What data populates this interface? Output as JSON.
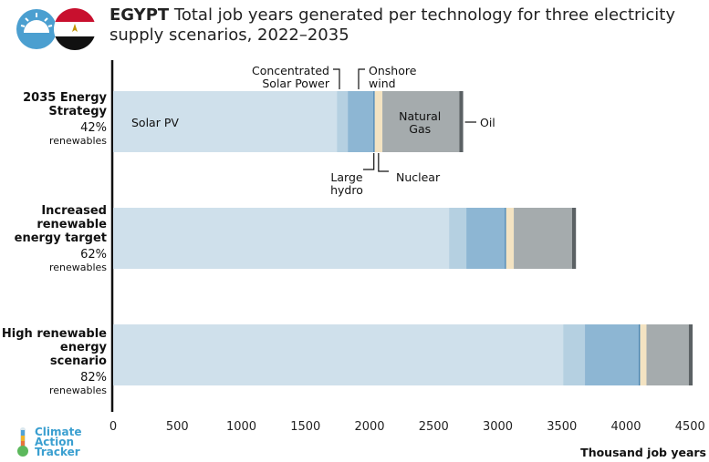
{
  "header": {
    "country": "EGYPT",
    "title_text": "Total job years generated per technology for three electricity supply scenarios, 2022–2035"
  },
  "branding": {
    "logo_lines": [
      "Climate",
      "Action",
      "Tracker"
    ]
  },
  "chart_data": {
    "type": "bar",
    "orientation": "horizontal",
    "stacked": true,
    "title": "Total job years generated per technology for three electricity supply scenarios, 2022–2035",
    "xlabel": "Thousand job years",
    "ylabel": "",
    "xlim": [
      0,
      4500
    ],
    "xticks": [
      0,
      500,
      1000,
      1500,
      2000,
      2500,
      3000,
      3500,
      4000,
      4500
    ],
    "grid": false,
    "categories": [
      {
        "name_lines": [
          "2035 Energy",
          "Strategy"
        ],
        "pct": "42%",
        "sub": "renewables"
      },
      {
        "name_lines": [
          "Increased",
          "renewable",
          "energy target"
        ],
        "pct": "62%",
        "sub": "renewables"
      },
      {
        "name_lines": [
          "High renewable",
          "energy scenario"
        ],
        "pct": "82%",
        "sub": "renewables"
      }
    ],
    "series": [
      {
        "name": "Solar PV",
        "color": "#cfe0eb",
        "values": [
          1745,
          2620,
          3510
        ]
      },
      {
        "name": "Concentrated Solar Power",
        "color": "#b5d0e1",
        "values": [
          85,
          135,
          170
        ]
      },
      {
        "name": "Onshore wind",
        "color": "#8db6d3",
        "values": [
          200,
          300,
          420
        ]
      },
      {
        "name": "Large hydro",
        "color": "#3f7fb0",
        "values": [
          10,
          10,
          10
        ]
      },
      {
        "name": "Nuclear",
        "color": "#f3e3c2",
        "values": [
          60,
          60,
          50
        ]
      },
      {
        "name": "Natural Gas",
        "color": "#a5abad",
        "values": [
          600,
          455,
          330
        ]
      },
      {
        "name": "Oil",
        "color": "#5b6164",
        "values": [
          30,
          30,
          30
        ]
      }
    ],
    "annotations": [
      {
        "text_lines": [
          "Solar PV"
        ],
        "series": "Solar PV"
      },
      {
        "text_lines": [
          "Concentrated",
          "Solar Power"
        ],
        "series": "Concentrated Solar Power"
      },
      {
        "text_lines": [
          "Onshore",
          "wind"
        ],
        "series": "Onshore wind"
      },
      {
        "text_lines": [
          "Large",
          "hydro"
        ],
        "series": "Large hydro"
      },
      {
        "text_lines": [
          "Nuclear"
        ],
        "series": "Nuclear"
      },
      {
        "text_lines": [
          "Natural",
          "Gas"
        ],
        "series": "Natural Gas"
      },
      {
        "text_lines": [
          "Oil"
        ],
        "series": "Oil"
      }
    ]
  }
}
